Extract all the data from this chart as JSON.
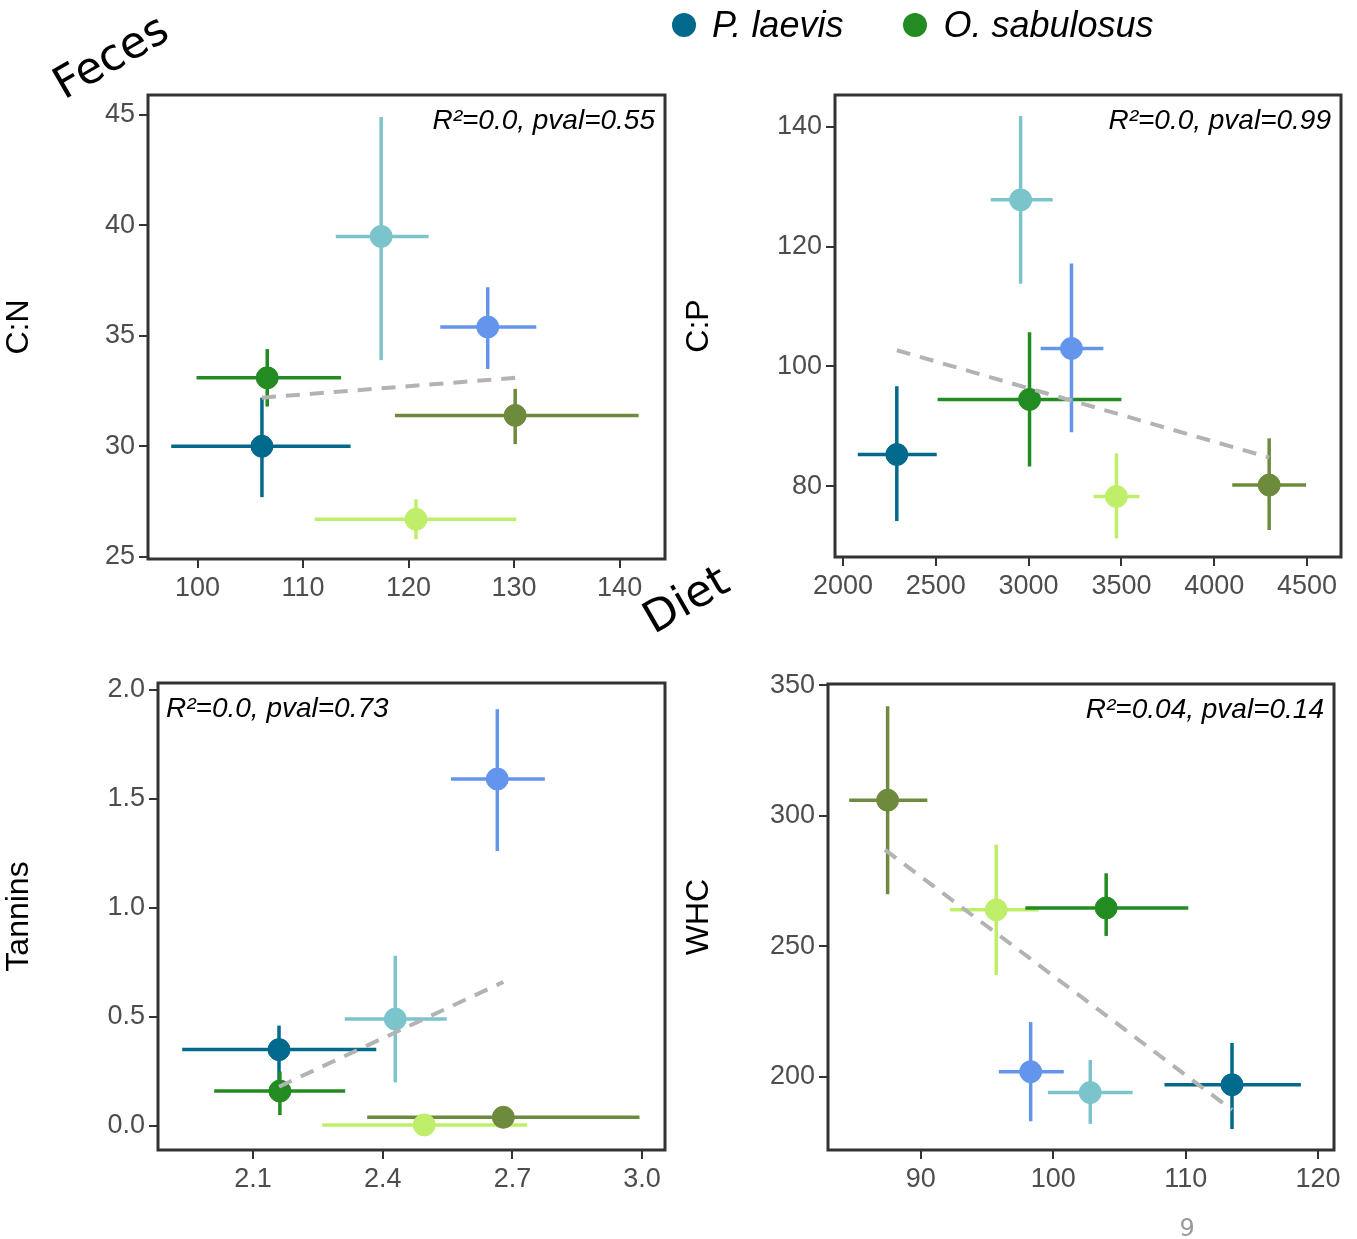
{
  "chart_data": [
    {
      "type": "scatter",
      "ylabel": "C:N",
      "marker": "circle",
      "xlim": [
        95.3,
        144.3
      ],
      "ylim": [
        24.9,
        45.9
      ],
      "xticks": [
        100,
        110,
        120,
        130,
        140
      ],
      "yticks": [
        25,
        30,
        35,
        40,
        45
      ],
      "grid": false,
      "annotations": [
        "R²=0.0, pval=0.55",
        "Feces"
      ],
      "series": [
        {
          "type": "scatter",
          "color": "#00698c",
          "x": [
            106.1
          ],
          "values": [
            30.0
          ],
          "errors": [
            [
              27.7,
              32.2
            ]
          ],
          "xerrors": [
            [
              97.5,
              114.5
            ]
          ]
        },
        {
          "type": "scatter",
          "color": "#228b22",
          "x": [
            106.6
          ],
          "values": [
            33.1
          ],
          "errors": [
            [
              31.8,
              34.4
            ]
          ],
          "xerrors": [
            [
              99.9,
              113.6
            ]
          ]
        },
        {
          "type": "scatter",
          "color": "#7cc4cc",
          "x": [
            117.4
          ],
          "values": [
            39.5
          ],
          "errors": [
            [
              33.9,
              44.9
            ]
          ],
          "xerrors": [
            [
              113.1,
              121.9
            ]
          ]
        },
        {
          "type": "scatter",
          "color": "#6495ed",
          "x": [
            127.5
          ],
          "values": [
            35.4
          ],
          "errors": [
            [
              33.5,
              37.2
            ]
          ],
          "xerrors": [
            [
              123.0,
              132.1
            ]
          ]
        },
        {
          "type": "scatter",
          "color": "#6e8b3d",
          "x": [
            130.1
          ],
          "values": [
            31.4
          ],
          "errors": [
            [
              30.1,
              32.6
            ]
          ],
          "xerrors": [
            [
              118.7,
              141.8
            ]
          ]
        },
        {
          "type": "scatter",
          "color": "#bfef6a",
          "x": [
            120.7
          ],
          "values": [
            26.7
          ],
          "errors": [
            [
              25.8,
              27.6
            ]
          ],
          "xerrors": [
            [
              111.1,
              130.2
            ]
          ]
        },
        {
          "type": "line",
          "color": "#b3b3b3",
          "x": [
            106.1,
            130.1
          ],
          "values": [
            32.2,
            33.1
          ],
          "line_style": "dashed",
          "marker": "none"
        }
      ]
    },
    {
      "type": "scatter",
      "ylabel": "C:P",
      "marker": "circle",
      "xlim": [
        1957,
        4683
      ],
      "ylim": [
        68.2,
        145.3
      ],
      "xticks": [
        2000,
        2500,
        3000,
        3500,
        4000,
        4500
      ],
      "yticks": [
        80,
        100,
        120,
        140
      ],
      "grid": false,
      "legend": "top",
      "annotations": [
        "R²=0.0, pval=0.99",
        "Diet"
      ],
      "series": [
        {
          "type": "scatter",
          "name": "P. laevis",
          "color": "#00698c",
          "x": [
            2290
          ],
          "values": [
            85.3
          ],
          "errors": [
            [
              74.2,
              96.7
            ]
          ],
          "xerrors": [
            [
              2080,
              2505
            ]
          ]
        },
        {
          "type": "scatter",
          "name": "O. sabulosus",
          "color": "#228b22",
          "x": [
            3005
          ],
          "values": [
            94.5
          ],
          "errors": [
            [
              83.3,
              105.7
            ]
          ],
          "xerrors": [
            [
              2510,
              3500
            ]
          ]
        },
        {
          "type": "scatter",
          "color": "#7cc4cc",
          "x": [
            2957
          ],
          "values": [
            127.8
          ],
          "errors": [
            [
              113.8,
              141.8
            ]
          ],
          "xerrors": [
            [
              2796,
              3130
            ]
          ]
        },
        {
          "type": "scatter",
          "color": "#6495ed",
          "x": [
            3231
          ],
          "values": [
            103.0
          ],
          "errors": [
            [
              89.0,
              117.2
            ]
          ],
          "xerrors": [
            [
              3065,
              3403
            ]
          ]
        },
        {
          "type": "scatter",
          "color": "#bfef6a",
          "x": [
            3473
          ],
          "values": [
            78.3
          ],
          "errors": [
            [
              71.3,
              85.5
            ]
          ],
          "xerrors": [
            [
              3350,
              3597
            ]
          ]
        },
        {
          "type": "scatter",
          "color": "#6e8b3d",
          "x": [
            4296
          ],
          "values": [
            80.2
          ],
          "errors": [
            [
              72.7,
              88.0
            ]
          ],
          "xerrors": [
            [
              4097,
              4495
            ]
          ]
        },
        {
          "type": "line",
          "color": "#b3b3b3",
          "x": [
            2290,
            4296
          ],
          "values": [
            102.7,
            84.8
          ],
          "line_style": "dashed",
          "marker": "none"
        }
      ]
    },
    {
      "type": "scatter",
      "ylabel": "Tannins",
      "marker": "circle",
      "xlim": [
        1.88,
        3.053
      ],
      "ylim": [
        -0.11,
        2.03
      ],
      "xticks": [
        {
          "value": 2.1,
          "label": "2.1"
        },
        {
          "value": 2.4,
          "label": "2.4"
        },
        {
          "value": 2.7,
          "label": "2.7"
        },
        {
          "value": 3.0,
          "label": "3.0"
        }
      ],
      "yticks": [
        {
          "value": 0,
          "label": "0.0"
        },
        {
          "value": 0.5,
          "label": "0.5"
        },
        {
          "value": 1,
          "label": "1.0"
        },
        {
          "value": 1.5,
          "label": "1.5"
        },
        {
          "value": 2,
          "label": "2.0"
        }
      ],
      "grid": false,
      "annotations": [
        "R²=0.0, pval=0.73"
      ],
      "series": [
        {
          "type": "scatter",
          "color": "#00698c",
          "x": [
            2.16
          ],
          "values": [
            0.35
          ],
          "errors": [
            [
              0.2,
              0.46
            ]
          ],
          "xerrors": [
            [
              1.936,
              2.385
            ]
          ]
        },
        {
          "type": "scatter",
          "color": "#228b22",
          "x": [
            2.162
          ],
          "values": [
            0.16
          ],
          "errors": [
            [
              0.05,
              0.25
            ]
          ],
          "xerrors": [
            [
              2.01,
              2.313
            ]
          ]
        },
        {
          "type": "scatter",
          "color": "#7cc4cc",
          "x": [
            2.429
          ],
          "values": [
            0.49
          ],
          "errors": [
            [
              0.2,
              0.78
            ]
          ],
          "xerrors": [
            [
              2.312,
              2.548
            ]
          ]
        },
        {
          "type": "scatter",
          "color": "#6495ed",
          "x": [
            2.665
          ],
          "values": [
            1.59
          ],
          "errors": [
            [
              1.26,
              1.91
            ]
          ],
          "xerrors": [
            [
              2.558,
              2.775
            ]
          ]
        },
        {
          "type": "scatter",
          "color": "#6e8b3d",
          "x": [
            2.679
          ],
          "values": [
            0.04
          ],
          "xerrors": [
            [
              2.364,
              2.994
            ]
          ]
        },
        {
          "type": "scatter",
          "color": "#bfef6a",
          "x": [
            2.496
          ],
          "values": [
            0.005
          ],
          "xerrors": [
            [
              2.26,
              2.734
            ]
          ]
        },
        {
          "type": "line",
          "color": "#b3b3b3",
          "x": [
            2.16,
            2.679
          ],
          "values": [
            0.18,
            0.66
          ],
          "line_style": "dashed",
          "marker": "none"
        }
      ]
    },
    {
      "type": "scatter",
      "ylabel": "WHC",
      "marker": "circle",
      "xlim": [
        83.0,
        121.2
      ],
      "ylim": [
        172,
        350.5
      ],
      "xticks": [
        90,
        100,
        110,
        120
      ],
      "yticks": [
        200,
        250,
        300,
        350
      ],
      "grid": false,
      "annotations": [
        "R²=0.04, pval=0.14",
        "9"
      ],
      "series": [
        {
          "type": "scatter",
          "color": "#6e8b3d",
          "x": [
            87.5
          ],
          "values": [
            306
          ],
          "errors": [
            [
              270,
              342
            ]
          ],
          "xerrors": [
            [
              84.6,
              90.5
            ]
          ]
        },
        {
          "type": "scatter",
          "color": "#bfef6a",
          "x": [
            95.7
          ],
          "values": [
            264
          ],
          "errors": [
            [
              239,
              289
            ]
          ],
          "xerrors": [
            [
              92.2,
              98.9
            ]
          ]
        },
        {
          "type": "scatter",
          "color": "#228b22",
          "x": [
            104.0
          ],
          "values": [
            264.7
          ],
          "errors": [
            [
              254,
              278
            ]
          ],
          "xerrors": [
            [
              97.9,
              110.2
            ]
          ]
        },
        {
          "type": "scatter",
          "color": "#6495ed",
          "x": [
            98.3
          ],
          "values": [
            202
          ],
          "errors": [
            [
              183,
              221
            ]
          ],
          "xerrors": [
            [
              95.9,
              100.8
            ]
          ]
        },
        {
          "type": "scatter",
          "color": "#7cc4cc",
          "x": [
            102.8
          ],
          "values": [
            194
          ],
          "errors": [
            [
              182,
              206.5
            ]
          ],
          "xerrors": [
            [
              99.6,
              106.0
            ]
          ]
        },
        {
          "type": "scatter",
          "color": "#00698c",
          "x": [
            113.5
          ],
          "values": [
            197
          ],
          "errors": [
            [
              180,
              213
            ]
          ],
          "xerrors": [
            [
              108.4,
              118.7
            ]
          ]
        },
        {
          "type": "line",
          "color": "#b3b3b3",
          "x": [
            87.3,
            113.5
          ],
          "values": [
            287,
            187.4
          ],
          "line_style": "dashed",
          "marker": "none"
        }
      ]
    }
  ]
}
